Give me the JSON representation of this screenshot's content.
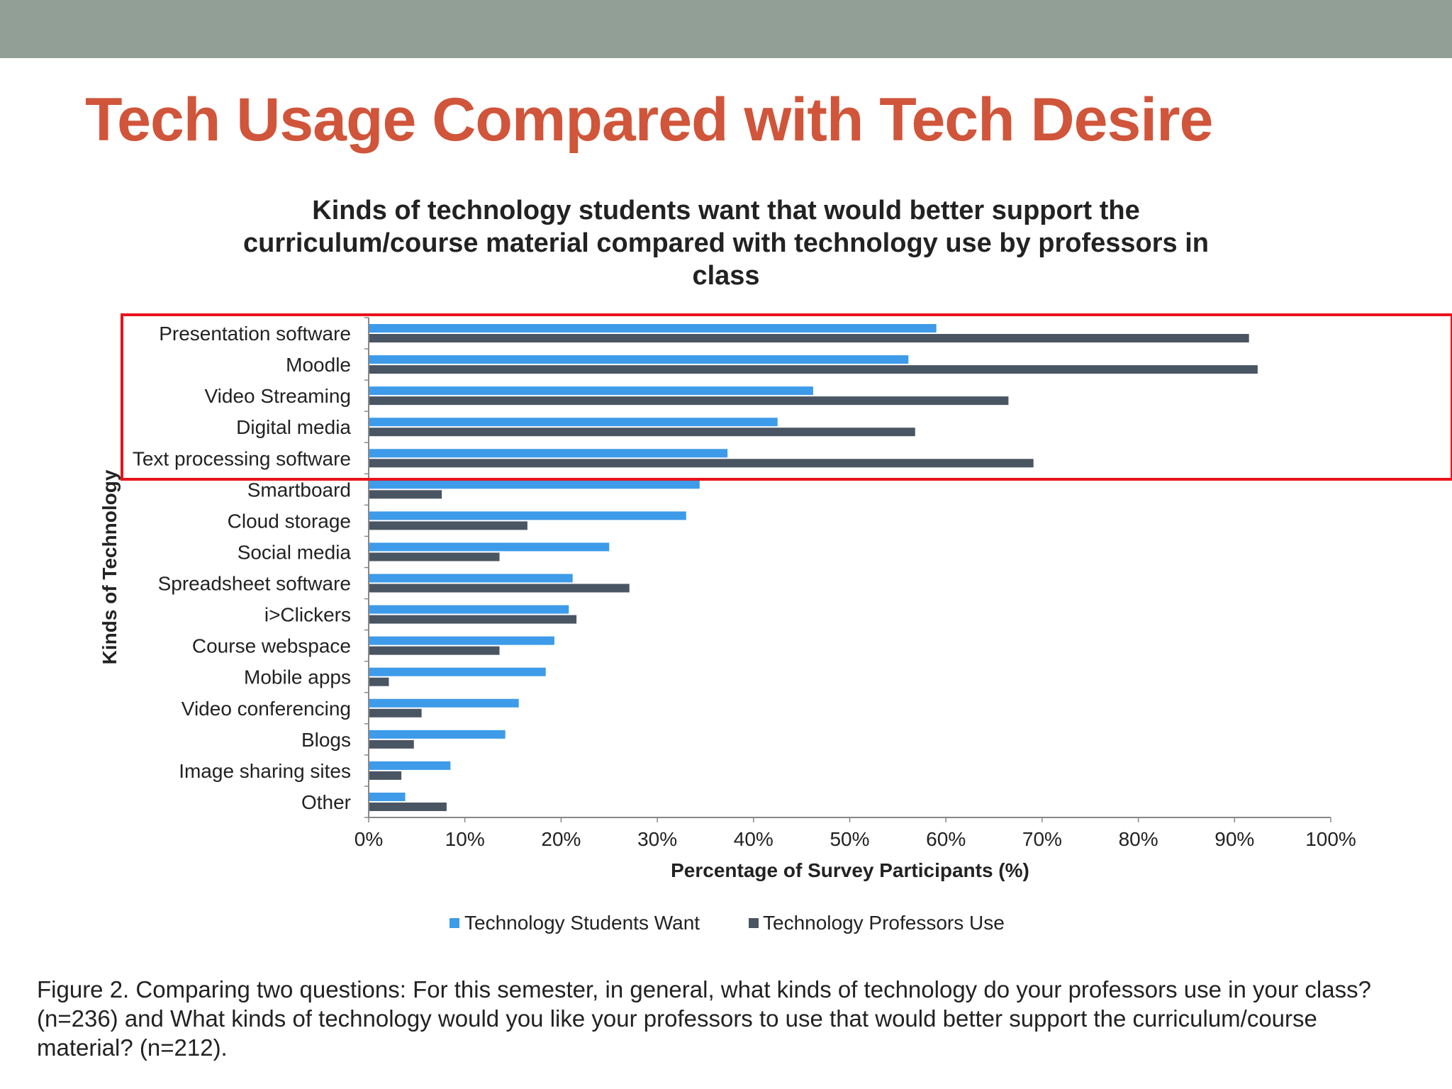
{
  "slide": {
    "title": "Tech Usage Compared with Tech Desire",
    "caption": "Figure 2. Comparing two questions: For this semester, in general, what kinds of technology do your professors use in your class? (n=236) and What kinds of technology would you like your professors to use that would better support the curriculum/course material? (n=212).",
    "colors": {
      "top_band": "#919f97",
      "title": "#d0553a",
      "highlight_box": "#e8131b"
    }
  },
  "chart_data": {
    "type": "bar",
    "orientation": "horizontal",
    "title_lines": [
      "Kinds of technology students want that would better support the",
      "curriculum/course material compared with technology use by professors in",
      "class"
    ],
    "xlabel": "Percentage of Survey Participants (%)",
    "ylabel": "Kinds of Technology",
    "xlim": [
      0,
      100
    ],
    "x_ticks": [
      "0%",
      "10%",
      "20%",
      "30%",
      "40%",
      "50%",
      "60%",
      "70%",
      "80%",
      "90%",
      "100%"
    ],
    "grid": false,
    "legend_position": "bottom",
    "categories": [
      "Presentation software",
      "Moodle",
      "Video Streaming",
      "Digital media",
      "Text processing software",
      "Smartboard",
      "Cloud storage",
      "Social media",
      "Spreadsheet software",
      "i>Clickers",
      "Course webspace",
      "Mobile apps",
      "Video conferencing",
      "Blogs",
      "Image sharing sites",
      "Other"
    ],
    "series": [
      {
        "name": "Technology Students Want",
        "color": "#3d9be9",
        "values": [
          59,
          56.1,
          46.2,
          42.5,
          37.3,
          34.4,
          33,
          25,
          21.2,
          20.8,
          19.3,
          18.4,
          15.6,
          14.2,
          8.5,
          3.8
        ]
      },
      {
        "name": "Technology Professors Use",
        "color": "#4a5563",
        "values": [
          91.5,
          92.4,
          66.5,
          56.8,
          69.1,
          7.6,
          16.5,
          13.6,
          27.1,
          21.6,
          13.6,
          2.1,
          5.5,
          4.7,
          3.4,
          8.1
        ]
      }
    ],
    "highlighted_categories": [
      "Presentation software",
      "Moodle",
      "Video Streaming",
      "Digital media",
      "Text processing software"
    ]
  }
}
